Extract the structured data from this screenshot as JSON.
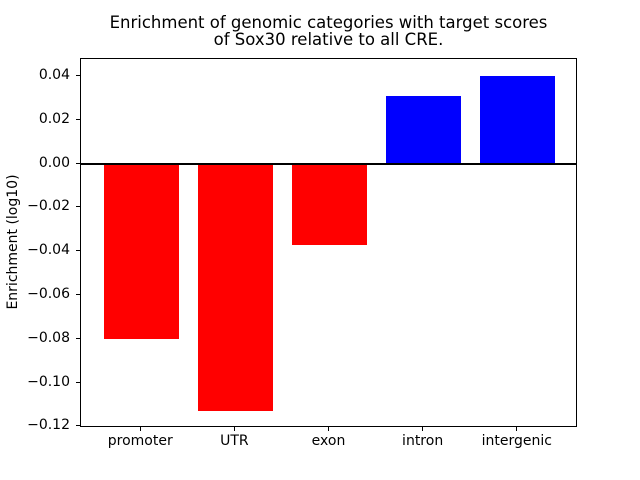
{
  "figure": {
    "background": "#ffffff",
    "axis_color": "#000000"
  },
  "chart_data": {
    "type": "bar",
    "title": "Enrichment of genomic categories with target scores\nof Sox30 relative to all CRE.",
    "xlabel": "",
    "ylabel": "Enrichment (log10)",
    "categories": [
      "promoter",
      "UTR",
      "exon",
      "intron",
      "intergenic"
    ],
    "values": [
      -0.08,
      -0.113,
      -0.037,
      0.031,
      0.04
    ],
    "bar_colors": [
      "#ff0000",
      "#ff0000",
      "#ff0000",
      "#0000ff",
      "#0000ff"
    ],
    "negative_color": "#ff0000",
    "positive_color": "#0000ff",
    "ylim": [
      -0.1207,
      0.0477
    ],
    "yticks": [
      0.04,
      0.02,
      0.0,
      -0.02,
      -0.04,
      -0.06,
      -0.08,
      -0.1,
      -0.12
    ],
    "ytick_labels": [
      "0.04",
      "0.02",
      "0.00",
      "−0.02",
      "−0.04",
      "−0.06",
      "−0.08",
      "−0.10",
      "−0.12"
    ],
    "grid": false,
    "legend": null,
    "zero_line": true,
    "bar_width_fraction": 0.8,
    "x_margin_units": 0.64
  }
}
